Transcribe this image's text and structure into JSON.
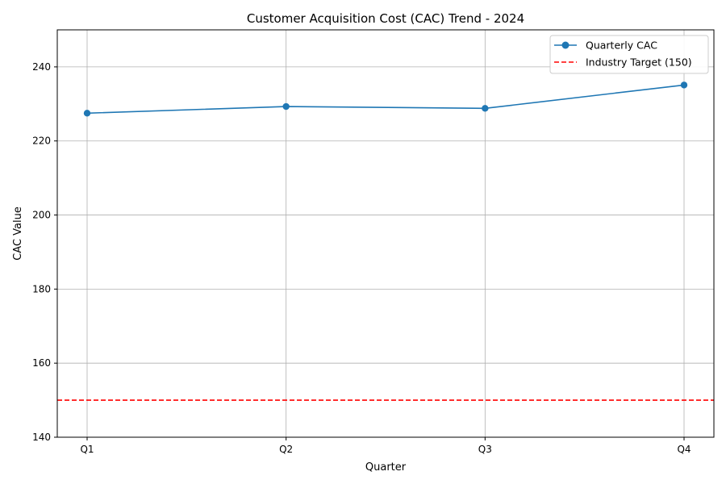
{
  "chart_data": {
    "type": "line",
    "title": "Customer Acquisition Cost (CAC) Trend - 2024",
    "xlabel": "Quarter",
    "ylabel": "CAC Value",
    "categories": [
      "Q1",
      "Q2",
      "Q3",
      "Q4"
    ],
    "ylim": [
      140,
      250
    ],
    "yticks": [
      140,
      160,
      180,
      200,
      220,
      240
    ],
    "grid": true,
    "legend_position": "top-right",
    "series": [
      {
        "name": "Quarterly CAC",
        "values": [
          227.5,
          229.3,
          228.8,
          235.1
        ],
        "color": "#1f77b4",
        "style": "solid",
        "marker": "circle"
      }
    ],
    "reference_lines": [
      {
        "name": "Industry Target (150)",
        "value": 150,
        "color": "#ff0000",
        "style": "dashed"
      }
    ]
  }
}
